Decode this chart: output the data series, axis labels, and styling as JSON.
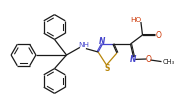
{
  "bg_color": "#ffffff",
  "line_color": "#1a1a1a",
  "n_color": "#4444cc",
  "s_color": "#b8860b",
  "o_color": "#cc3300",
  "figsize": [
    1.91,
    1.1
  ],
  "dpi": 100,
  "xlim": [
    0,
    9.5
  ],
  "ylim": [
    0,
    5.5
  ]
}
